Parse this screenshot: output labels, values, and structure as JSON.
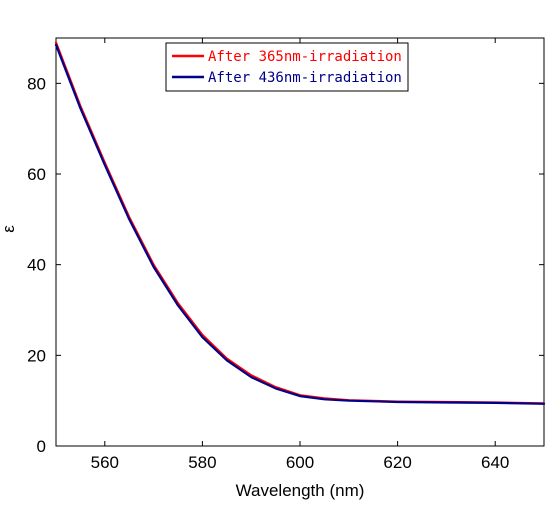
{
  "chart_data": {
    "type": "line",
    "title": "",
    "xlabel": "Wavelength (nm)",
    "ylabel": "ε",
    "xlim": [
      550,
      650
    ],
    "ylim": [
      0,
      90
    ],
    "xticks": [
      560,
      580,
      600,
      620,
      640
    ],
    "yticks": [
      0,
      20,
      40,
      60,
      80
    ],
    "grid": false,
    "legend_position": "top-center",
    "series": [
      {
        "name": "After 365nm-irradiation",
        "color": "#ff0000",
        "x": [
          550,
          555,
          560,
          565,
          570,
          575,
          580,
          585,
          590,
          595,
          600,
          605,
          610,
          620,
          630,
          640,
          650
        ],
        "y": [
          89,
          75,
          62.5,
          50.5,
          40,
          31.5,
          24.5,
          19.3,
          15.6,
          13,
          11.2,
          10.5,
          10.1,
          9.8,
          9.7,
          9.6,
          9.4
        ]
      },
      {
        "name": "After 436nm-irradiation",
        "color": "#00008b",
        "x": [
          550,
          555,
          560,
          565,
          570,
          575,
          580,
          585,
          590,
          595,
          600,
          605,
          610,
          620,
          630,
          640,
          650
        ],
        "y": [
          88.5,
          74.5,
          62,
          50,
          39.5,
          31,
          24,
          18.9,
          15.2,
          12.7,
          11,
          10.3,
          10,
          9.7,
          9.6,
          9.5,
          9.3
        ]
      }
    ]
  }
}
